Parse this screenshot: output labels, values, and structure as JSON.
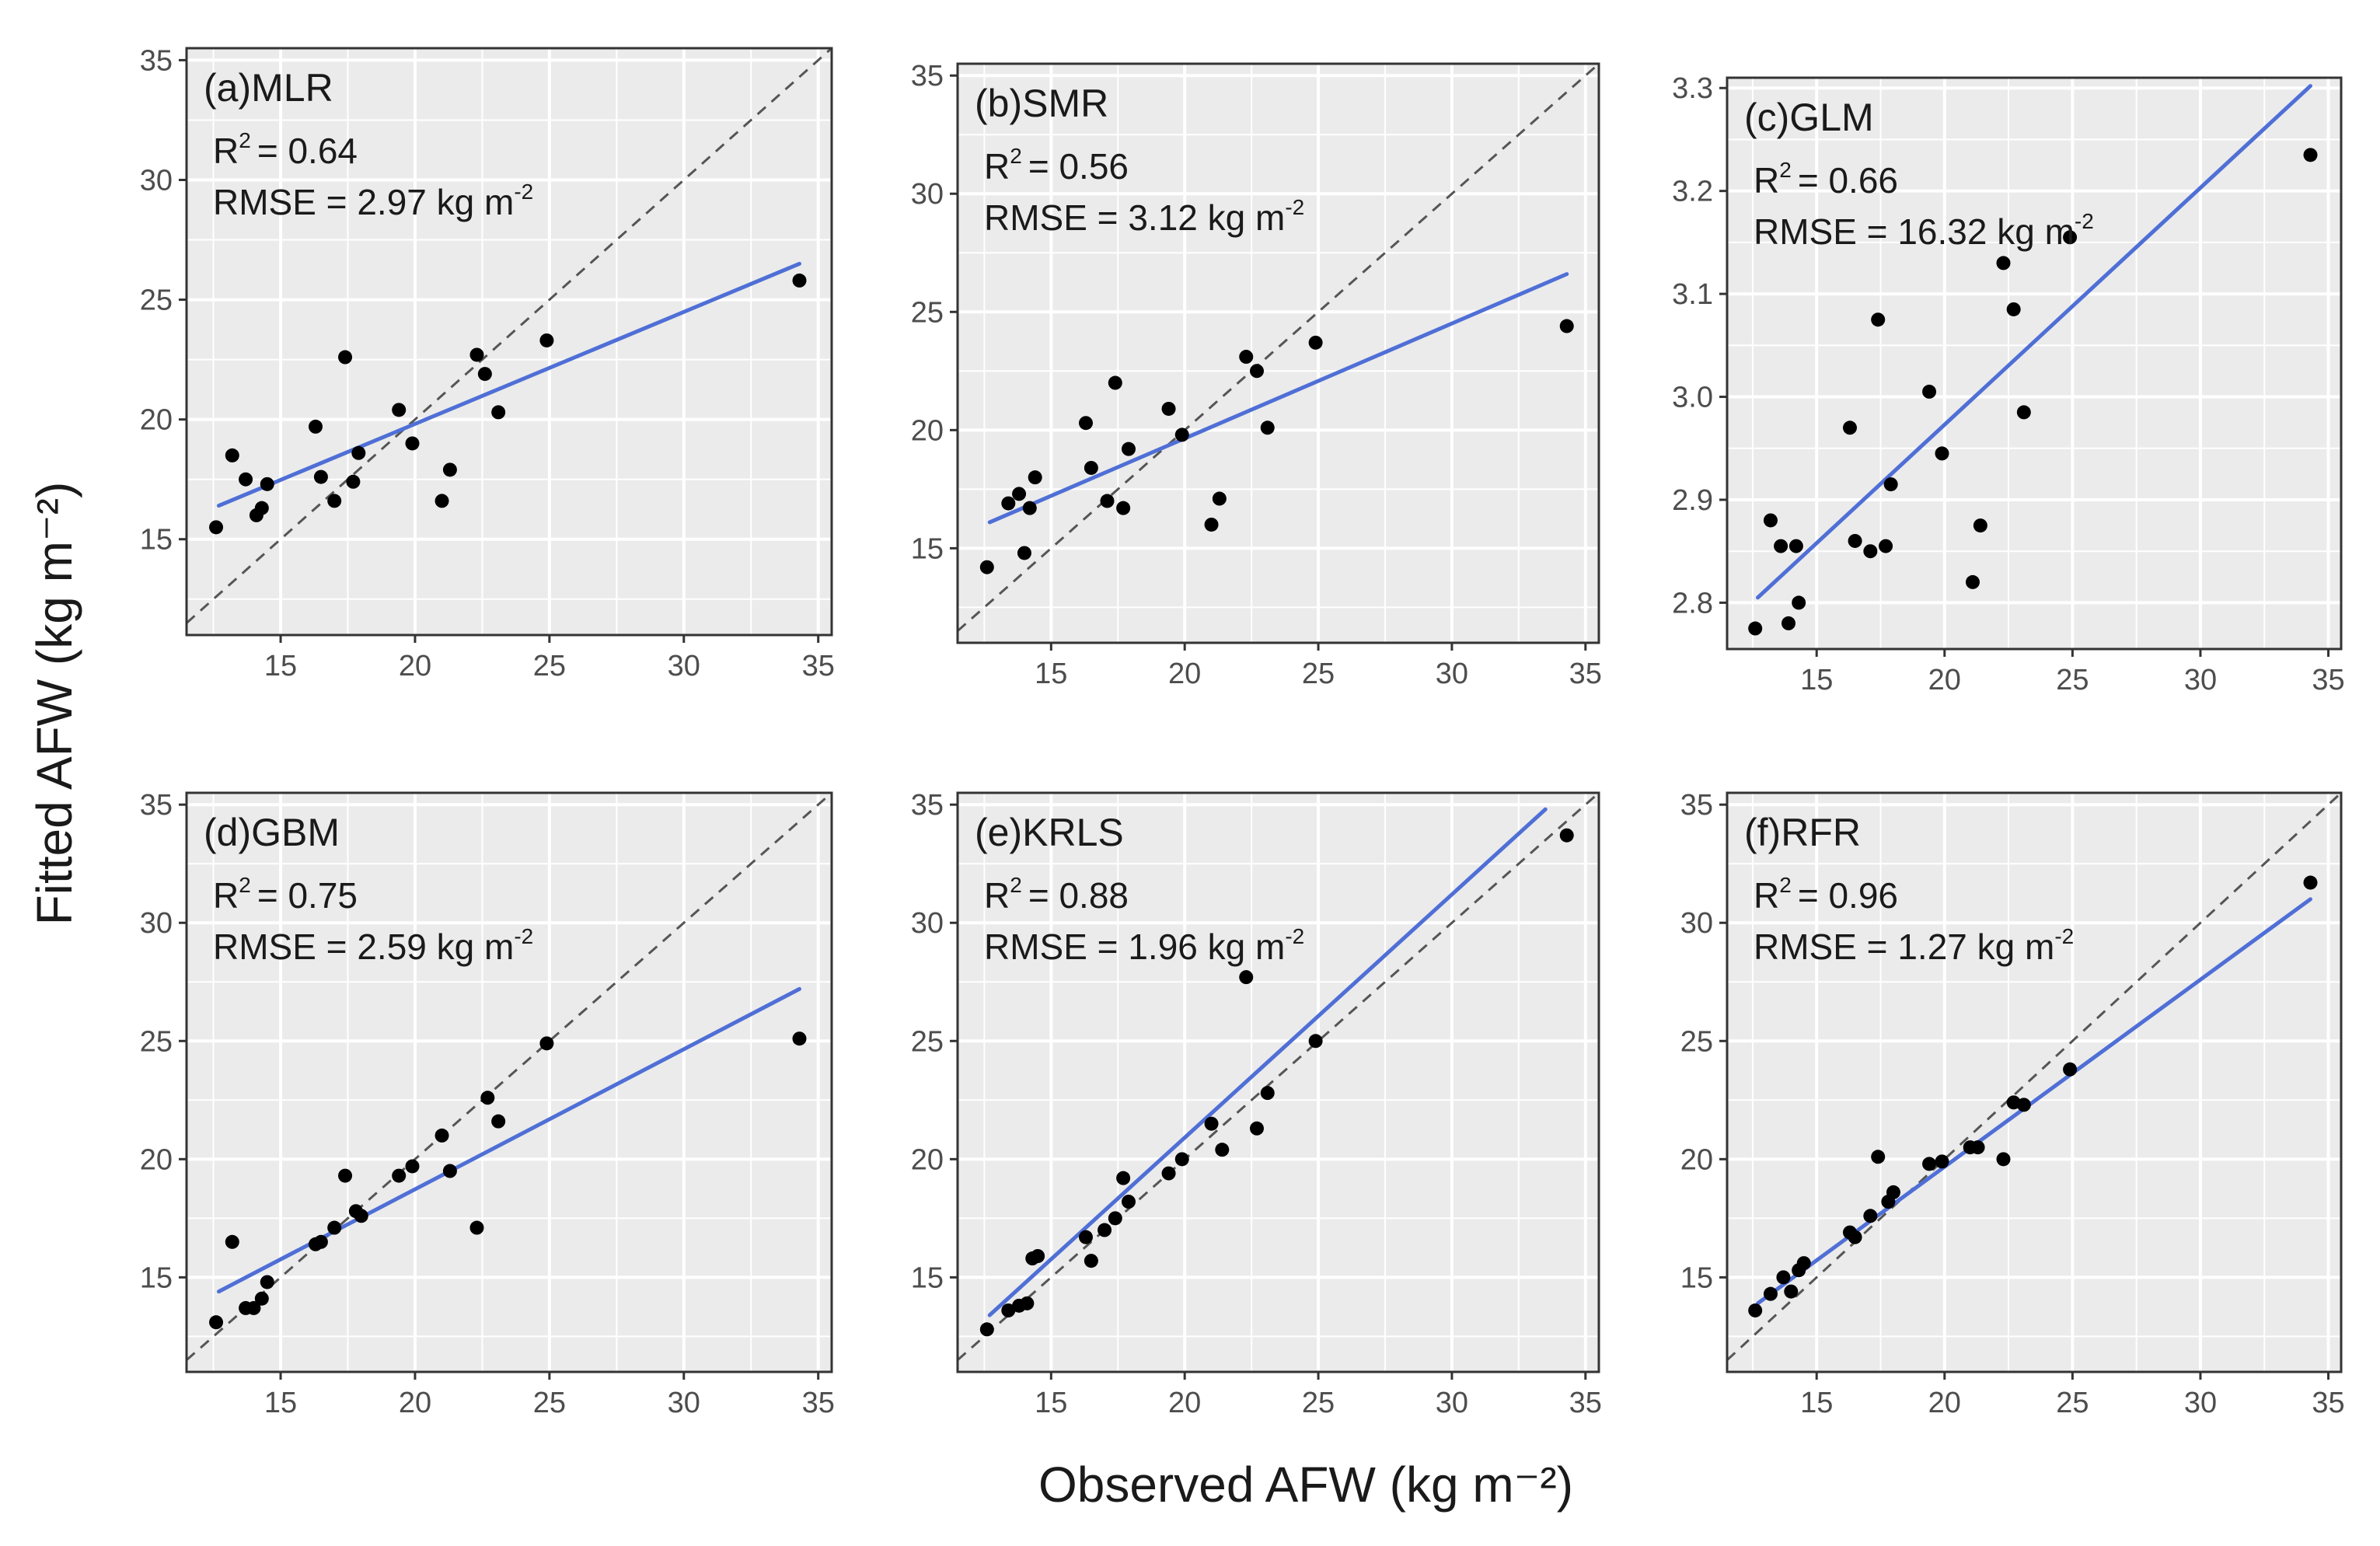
{
  "figure": {
    "ylabel": "Fitted AFW (kg m⁻²)",
    "xlabel": "Observed AFW (kg m⁻²)"
  },
  "colors": {
    "panel_bg": "#ebebeb",
    "grid": "#ffffff",
    "fit_line": "#4f6fd6",
    "points": "#000000",
    "identity_line": "#555555"
  },
  "chart_data": [
    {
      "type": "scatter",
      "title": "(a)MLR",
      "r2_label": "R",
      "r2_value": "= 0.64",
      "rmse_label": "RMSE = 2.97 kg m",
      "unit_exp": "-2",
      "xlim": [
        11.5,
        35.5
      ],
      "ylim": [
        11,
        35.5
      ],
      "xticks": [
        15,
        20,
        25,
        30,
        35
      ],
      "yticks": [
        15,
        20,
        25,
        30,
        35
      ],
      "y_tick_decimals": 0,
      "identity_line": true,
      "fit_line": {
        "x": [
          12.7,
          34.3
        ],
        "y": [
          16.4,
          26.5
        ]
      },
      "points": [
        [
          12.6,
          15.5
        ],
        [
          13.2,
          18.5
        ],
        [
          13.7,
          17.5
        ],
        [
          14.1,
          16.0
        ],
        [
          14.3,
          16.3
        ],
        [
          14.5,
          17.3
        ],
        [
          16.3,
          19.7
        ],
        [
          16.5,
          17.6
        ],
        [
          17.0,
          16.6
        ],
        [
          17.4,
          22.6
        ],
        [
          17.7,
          17.4
        ],
        [
          17.9,
          18.6
        ],
        [
          19.4,
          20.4
        ],
        [
          19.9,
          19.0
        ],
        [
          21.0,
          16.6
        ],
        [
          21.3,
          17.9
        ],
        [
          22.3,
          22.7
        ],
        [
          22.6,
          21.9
        ],
        [
          23.1,
          20.3
        ],
        [
          24.9,
          23.3
        ],
        [
          34.3,
          25.8
        ]
      ]
    },
    {
      "type": "scatter",
      "title": "(b)SMR",
      "r2_label": "R",
      "r2_value": "= 0.56",
      "rmse_label": "RMSE = 3.12 kg m",
      "unit_exp": "-2",
      "xlim": [
        11.5,
        35.5
      ],
      "ylim": [
        11,
        35.5
      ],
      "xticks": [
        15,
        20,
        25,
        30,
        35
      ],
      "yticks": [
        15,
        20,
        25,
        30,
        35
      ],
      "y_tick_decimals": 0,
      "identity_line": true,
      "fit_line": {
        "x": [
          12.7,
          34.3
        ],
        "y": [
          16.1,
          26.6
        ]
      },
      "points": [
        [
          12.6,
          14.2
        ],
        [
          13.4,
          16.9
        ],
        [
          13.8,
          17.3
        ],
        [
          14.0,
          14.8
        ],
        [
          14.2,
          16.7
        ],
        [
          14.4,
          18.0
        ],
        [
          16.3,
          20.3
        ],
        [
          16.5,
          18.4
        ],
        [
          17.1,
          17.0
        ],
        [
          17.4,
          22.0
        ],
        [
          17.7,
          16.7
        ],
        [
          17.9,
          19.2
        ],
        [
          19.4,
          20.9
        ],
        [
          19.9,
          19.8
        ],
        [
          21.0,
          16.0
        ],
        [
          21.3,
          17.1
        ],
        [
          22.3,
          23.1
        ],
        [
          22.7,
          22.5
        ],
        [
          23.1,
          20.1
        ],
        [
          24.9,
          23.7
        ],
        [
          34.3,
          24.4
        ]
      ]
    },
    {
      "type": "scatter",
      "title": "(c)GLM",
      "r2_label": "R",
      "r2_value": "= 0.66",
      "rmse_label": "RMSE = 16.32 kg m",
      "unit_exp": "-2",
      "xlim": [
        11.5,
        35.5
      ],
      "ylim": [
        2.755,
        3.31
      ],
      "xticks": [
        15,
        20,
        25,
        30,
        35
      ],
      "yticks": [
        2.8,
        2.9,
        3.0,
        3.1,
        3.2,
        3.3
      ],
      "y_tick_decimals": 1,
      "identity_line": false,
      "fit_line": {
        "x": [
          12.7,
          34.3
        ],
        "y": [
          2.805,
          3.302
        ]
      },
      "points": [
        [
          12.6,
          2.775
        ],
        [
          13.2,
          2.88
        ],
        [
          13.6,
          2.855
        ],
        [
          13.9,
          2.78
        ],
        [
          14.2,
          2.855
        ],
        [
          14.3,
          2.8
        ],
        [
          16.3,
          2.97
        ],
        [
          16.5,
          2.86
        ],
        [
          17.1,
          2.85
        ],
        [
          17.4,
          3.075
        ],
        [
          17.7,
          2.855
        ],
        [
          17.9,
          2.915
        ],
        [
          19.4,
          3.005
        ],
        [
          19.9,
          2.945
        ],
        [
          21.1,
          2.82
        ],
        [
          21.4,
          2.875
        ],
        [
          22.3,
          3.13
        ],
        [
          22.7,
          3.085
        ],
        [
          23.1,
          2.985
        ],
        [
          24.9,
          3.155
        ],
        [
          34.3,
          3.235
        ]
      ]
    },
    {
      "type": "scatter",
      "title": "(d)GBM",
      "r2_label": "R",
      "r2_value": "= 0.75",
      "rmse_label": "RMSE = 2.59 kg m",
      "unit_exp": "-2",
      "xlim": [
        11.5,
        35.5
      ],
      "ylim": [
        11,
        35.5
      ],
      "xticks": [
        15,
        20,
        25,
        30,
        35
      ],
      "yticks": [
        15,
        20,
        25,
        30,
        35
      ],
      "y_tick_decimals": 0,
      "identity_line": true,
      "fit_line": {
        "x": [
          12.7,
          34.3
        ],
        "y": [
          14.4,
          27.2
        ]
      },
      "points": [
        [
          12.6,
          13.1
        ],
        [
          13.2,
          16.5
        ],
        [
          13.7,
          13.7
        ],
        [
          14.0,
          13.7
        ],
        [
          14.3,
          14.1
        ],
        [
          14.5,
          14.8
        ],
        [
          16.3,
          16.4
        ],
        [
          16.5,
          16.5
        ],
        [
          17.0,
          17.1
        ],
        [
          17.4,
          19.3
        ],
        [
          17.8,
          17.8
        ],
        [
          18.0,
          17.6
        ],
        [
          19.4,
          19.3
        ],
        [
          19.9,
          19.7
        ],
        [
          21.0,
          21.0
        ],
        [
          21.3,
          19.5
        ],
        [
          22.3,
          17.1
        ],
        [
          22.7,
          22.6
        ],
        [
          23.1,
          21.6
        ],
        [
          24.9,
          24.9
        ],
        [
          34.3,
          25.1
        ]
      ]
    },
    {
      "type": "scatter",
      "title": "(e)KRLS",
      "r2_label": "R",
      "r2_value": "= 0.88",
      "rmse_label": "RMSE = 1.96 kg m",
      "unit_exp": "-2",
      "xlim": [
        11.5,
        35.5
      ],
      "ylim": [
        11,
        35.5
      ],
      "xticks": [
        15,
        20,
        25,
        30,
        35
      ],
      "yticks": [
        15,
        20,
        25,
        30,
        35
      ],
      "y_tick_decimals": 0,
      "identity_line": true,
      "fit_line": {
        "x": [
          12.7,
          33.5
        ],
        "y": [
          13.4,
          34.8
        ]
      },
      "points": [
        [
          12.6,
          12.8
        ],
        [
          13.4,
          13.6
        ],
        [
          13.8,
          13.8
        ],
        [
          14.1,
          13.9
        ],
        [
          14.3,
          15.8
        ],
        [
          14.5,
          15.9
        ],
        [
          16.3,
          16.7
        ],
        [
          16.5,
          15.7
        ],
        [
          17.0,
          17.0
        ],
        [
          17.4,
          17.5
        ],
        [
          17.7,
          19.2
        ],
        [
          17.9,
          18.2
        ],
        [
          19.4,
          19.4
        ],
        [
          19.9,
          20.0
        ],
        [
          21.0,
          21.5
        ],
        [
          21.4,
          20.4
        ],
        [
          22.3,
          27.7
        ],
        [
          22.7,
          21.3
        ],
        [
          23.1,
          22.8
        ],
        [
          24.9,
          25.0
        ],
        [
          34.3,
          33.7
        ]
      ]
    },
    {
      "type": "scatter",
      "title": "(f)RFR",
      "r2_label": "R",
      "r2_value": "= 0.96",
      "rmse_label": "RMSE = 1.27 kg m",
      "unit_exp": "-2",
      "xlim": [
        11.5,
        35.5
      ],
      "ylim": [
        11,
        35.5
      ],
      "xticks": [
        15,
        20,
        25,
        30,
        35
      ],
      "yticks": [
        15,
        20,
        25,
        30,
        35
      ],
      "y_tick_decimals": 0,
      "identity_line": true,
      "fit_line": {
        "x": [
          12.7,
          34.3
        ],
        "y": [
          13.9,
          31.0
        ]
      },
      "points": [
        [
          12.6,
          13.6
        ],
        [
          13.2,
          14.3
        ],
        [
          13.7,
          15.0
        ],
        [
          14.0,
          14.4
        ],
        [
          14.3,
          15.3
        ],
        [
          14.5,
          15.6
        ],
        [
          16.3,
          16.9
        ],
        [
          16.5,
          16.7
        ],
        [
          17.1,
          17.6
        ],
        [
          17.4,
          20.1
        ],
        [
          17.8,
          18.2
        ],
        [
          18.0,
          18.6
        ],
        [
          19.4,
          19.8
        ],
        [
          19.9,
          19.9
        ],
        [
          21.0,
          20.5
        ],
        [
          21.3,
          20.5
        ],
        [
          22.3,
          20.0
        ],
        [
          22.7,
          22.4
        ],
        [
          23.1,
          22.3
        ],
        [
          24.9,
          23.8
        ],
        [
          34.3,
          31.7
        ]
      ]
    }
  ]
}
